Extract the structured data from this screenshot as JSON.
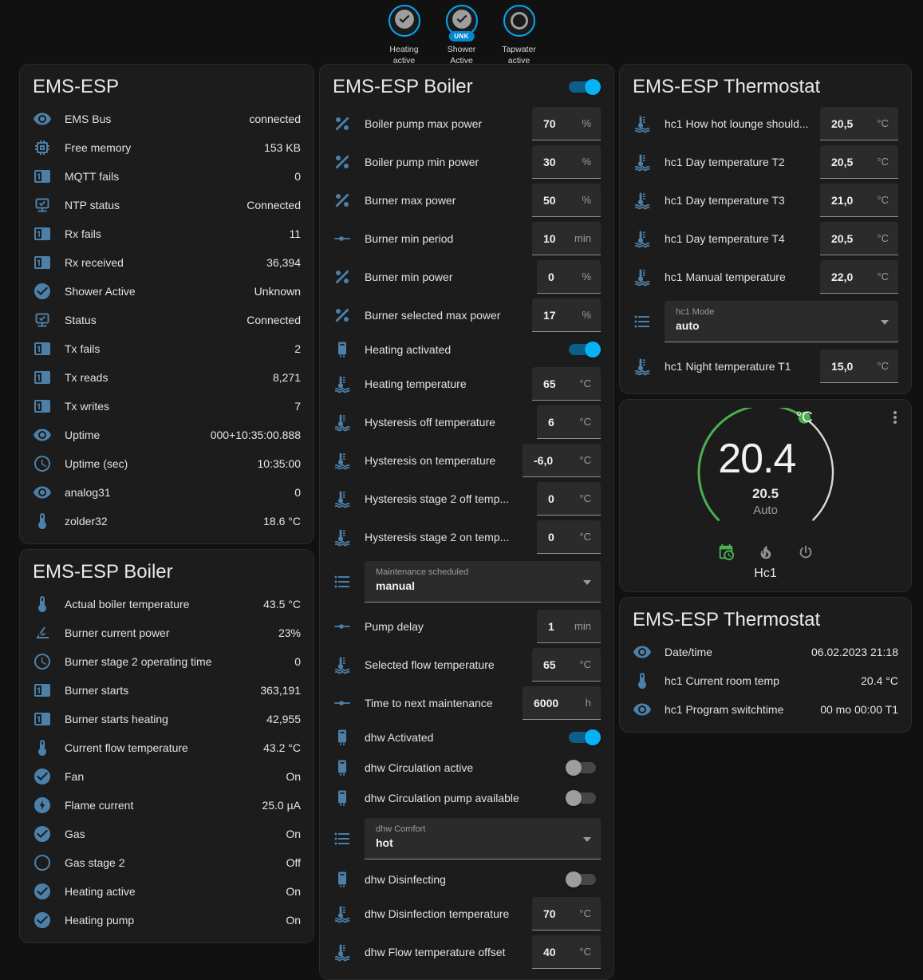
{
  "badges": [
    {
      "label_line1": "Heating",
      "label_line2": "active",
      "state": "on",
      "pill": ""
    },
    {
      "label_line1": "Shower",
      "label_line2": "Active",
      "state": "on",
      "pill": "UNK"
    },
    {
      "label_line1": "Tapwater",
      "label_line2": "active",
      "state": "off",
      "pill": ""
    }
  ],
  "left_card1": {
    "title": "EMS-ESP",
    "rows": [
      {
        "icon": "eye",
        "label": "EMS Bus",
        "value": "connected"
      },
      {
        "icon": "chip",
        "label": "Free memory",
        "value": "153 KB"
      },
      {
        "icon": "counter",
        "label": "MQTT fails",
        "value": "0"
      },
      {
        "icon": "network-check",
        "label": "NTP status",
        "value": "Connected"
      },
      {
        "icon": "counter",
        "label": "Rx fails",
        "value": "11"
      },
      {
        "icon": "counter",
        "label": "Rx received",
        "value": "36,394"
      },
      {
        "icon": "check-circle",
        "label": "Shower Active",
        "value": "Unknown"
      },
      {
        "icon": "network-check",
        "label": "Status",
        "value": "Connected"
      },
      {
        "icon": "counter",
        "label": "Tx fails",
        "value": "2"
      },
      {
        "icon": "counter",
        "label": "Tx reads",
        "value": "8,271"
      },
      {
        "icon": "counter",
        "label": "Tx writes",
        "value": "7"
      },
      {
        "icon": "eye",
        "label": "Uptime",
        "value": "000+10:35:00.888"
      },
      {
        "icon": "clock",
        "label": "Uptime (sec)",
        "value": "10:35:00"
      },
      {
        "icon": "eye",
        "label": "analog31",
        "value": "0"
      },
      {
        "icon": "thermometer",
        "label": "zolder32",
        "value": "18.6 °C"
      }
    ]
  },
  "left_card2": {
    "title": "EMS-ESP Boiler",
    "rows": [
      {
        "icon": "thermometer",
        "label": "Actual boiler temperature",
        "value": "43.5 °C"
      },
      {
        "icon": "angle",
        "label": "Burner current power",
        "value": "23%"
      },
      {
        "icon": "clock",
        "label": "Burner stage 2 operating time",
        "value": "0"
      },
      {
        "icon": "counter",
        "label": "Burner starts",
        "value": "363,191"
      },
      {
        "icon": "counter",
        "label": "Burner starts heating",
        "value": "42,955"
      },
      {
        "icon": "thermometer",
        "label": "Current flow temperature",
        "value": "43.2 °C"
      },
      {
        "icon": "check-circle",
        "label": "Fan",
        "value": "On"
      },
      {
        "icon": "flash-circle",
        "label": "Flame current",
        "value": "25.0 µA"
      },
      {
        "icon": "check-circle",
        "label": "Gas",
        "value": "On"
      },
      {
        "icon": "circle-outline",
        "label": "Gas stage 2",
        "value": "Off"
      },
      {
        "icon": "check-circle",
        "label": "Heating active",
        "value": "On"
      },
      {
        "icon": "check-circle",
        "label": "Heating pump",
        "value": "On"
      }
    ]
  },
  "middle_card": {
    "title": "EMS-ESP Boiler",
    "header_toggle_on": true,
    "rows": [
      {
        "type": "number",
        "icon": "percent",
        "label": "Boiler pump max power",
        "value": "70",
        "unit": "%"
      },
      {
        "type": "number",
        "icon": "percent",
        "label": "Boiler pump min power",
        "value": "30",
        "unit": "%"
      },
      {
        "type": "number",
        "icon": "percent",
        "label": "Burner max power",
        "value": "50",
        "unit": "%"
      },
      {
        "type": "number",
        "icon": "slider",
        "label": "Burner min period",
        "value": "10",
        "unit": "min"
      },
      {
        "type": "number",
        "icon": "percent",
        "label": "Burner min power",
        "value": "0",
        "unit": "%"
      },
      {
        "type": "number",
        "icon": "percent",
        "label": "Burner selected max power",
        "value": "17",
        "unit": "%"
      },
      {
        "type": "toggle",
        "icon": "boiler",
        "label": "Heating activated",
        "on": true
      },
      {
        "type": "number",
        "icon": "water-thermo",
        "label": "Heating temperature",
        "value": "65",
        "unit": "°C"
      },
      {
        "type": "number",
        "icon": "water-thermo",
        "label": "Hysteresis off temperature",
        "value": "6",
        "unit": "°C"
      },
      {
        "type": "number",
        "icon": "water-thermo",
        "label": "Hysteresis on temperature",
        "value": "-6,0",
        "unit": "°C"
      },
      {
        "type": "number",
        "icon": "water-thermo",
        "label": "Hysteresis stage 2 off temp...",
        "value": "0",
        "unit": "°C"
      },
      {
        "type": "number",
        "icon": "water-thermo",
        "label": "Hysteresis stage 2 on temp...",
        "value": "0",
        "unit": "°C"
      },
      {
        "type": "select",
        "icon": "list",
        "label": "Maintenance scheduled",
        "value": "manual"
      },
      {
        "type": "number",
        "icon": "slider",
        "label": "Pump delay",
        "value": "1",
        "unit": "min"
      },
      {
        "type": "number",
        "icon": "water-thermo",
        "label": "Selected flow temperature",
        "value": "65",
        "unit": "°C"
      },
      {
        "type": "number",
        "icon": "slider",
        "label": "Time to next maintenance",
        "value": "6000",
        "unit": "h"
      },
      {
        "type": "toggle",
        "icon": "boiler",
        "label": "dhw Activated",
        "on": true
      },
      {
        "type": "toggle",
        "icon": "boiler",
        "label": "dhw Circulation active",
        "on": false
      },
      {
        "type": "toggle",
        "icon": "boiler",
        "label": "dhw Circulation pump available",
        "on": false
      },
      {
        "type": "select",
        "icon": "list",
        "label": "dhw Comfort",
        "value": "hot"
      },
      {
        "type": "toggle",
        "icon": "boiler",
        "label": "dhw Disinfecting",
        "on": false
      },
      {
        "type": "number",
        "icon": "water-thermo",
        "label": "dhw Disinfection temperature",
        "value": "70",
        "unit": "°C"
      },
      {
        "type": "number",
        "icon": "water-thermo",
        "label": "dhw Flow temperature offset",
        "value": "40",
        "unit": "°C"
      }
    ]
  },
  "right_card1": {
    "title": "EMS-ESP Thermostat",
    "rows": [
      {
        "type": "number",
        "icon": "water-thermo",
        "label": "hc1 How hot lounge should...",
        "value": "20,5",
        "unit": "°C"
      },
      {
        "type": "number",
        "icon": "water-thermo",
        "label": "hc1 Day temperature T2",
        "value": "20,5",
        "unit": "°C"
      },
      {
        "type": "number",
        "icon": "water-thermo",
        "label": "hc1 Day temperature T3",
        "value": "21,0",
        "unit": "°C"
      },
      {
        "type": "number",
        "icon": "water-thermo",
        "label": "hc1 Day temperature T4",
        "value": "20,5",
        "unit": "°C"
      },
      {
        "type": "number",
        "icon": "water-thermo",
        "label": "hc1 Manual temperature",
        "value": "22,0",
        "unit": "°C"
      },
      {
        "type": "select",
        "icon": "list",
        "label": "hc1 Mode",
        "value": "auto"
      },
      {
        "type": "number",
        "icon": "water-thermo",
        "label": "hc1 Night temperature T1",
        "value": "15,0",
        "unit": "°C"
      }
    ]
  },
  "dial_card": {
    "current_temp": "20.4",
    "temp_unit": "°C",
    "target_temp": "20.5",
    "mode_label": "Auto",
    "entity_label": "Hc1",
    "modes": [
      {
        "icon": "calendar-clock",
        "name": "auto-mode",
        "active": true
      },
      {
        "icon": "fire",
        "name": "heat-mode",
        "active": false
      },
      {
        "icon": "power",
        "name": "off-mode",
        "active": false
      }
    ]
  },
  "right_card3": {
    "title": "EMS-ESP Thermostat",
    "rows": [
      {
        "icon": "eye",
        "label": "Date/time",
        "value": "06.02.2023 21:18"
      },
      {
        "icon": "thermometer",
        "label": "hc1 Current room temp",
        "value": "20.4 °C"
      },
      {
        "icon": "eye",
        "label": "hc1 Program switchtime",
        "value": "00 mo 00:00 T1"
      }
    ]
  },
  "colors": {
    "accent": "#03a9f4",
    "icon_blue": "#4d80a9",
    "green": "#4caf50",
    "card_bg": "#1c1c1c",
    "page_bg": "#111111"
  }
}
